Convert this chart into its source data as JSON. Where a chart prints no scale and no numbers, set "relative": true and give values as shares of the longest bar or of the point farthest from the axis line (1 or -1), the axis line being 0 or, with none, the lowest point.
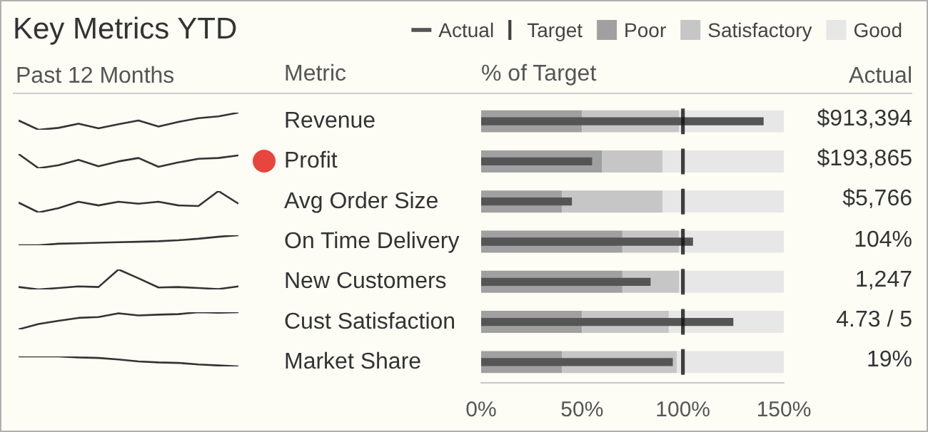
{
  "chart_data": [
    {
      "type": "bar",
      "xlabel": "% of Target",
      "ylabel": "Metric",
      "orientation": "horizontal",
      "legend": "top right",
      "categories": [
        "Revenue",
        "Profit",
        "Avg Order Size",
        "On Time Delivery",
        "New Customers",
        "Cust Satisfaction",
        "Market Share"
      ],
      "series": [
        {
          "name": "Actual",
          "color": "#555555",
          "values": [
            140,
            55,
            45,
            105,
            84,
            125,
            95
          ]
        },
        {
          "name": "Target",
          "type": "scatter",
          "color": "#111111",
          "values": [
            100,
            100,
            100,
            100,
            100,
            100,
            100
          ]
        },
        {
          "name": "Poor",
          "color": "#a0a0a0",
          "base": [
            0,
            0,
            0,
            0,
            0,
            0,
            0
          ],
          "values": [
            50,
            60,
            40,
            70,
            70,
            50,
            40
          ]
        },
        {
          "name": "Satisfactory",
          "color": "#c6c6c6",
          "base": [
            50,
            60,
            40,
            70,
            70,
            50,
            40
          ],
          "values": [
            48,
            30,
            50,
            28,
            28,
            43,
            57
          ]
        },
        {
          "name": "Good",
          "color": "#e7e7e7",
          "base": [
            98,
            90,
            90,
            98,
            98,
            93,
            97
          ],
          "values": [
            52,
            60,
            60,
            52,
            52,
            57,
            53
          ]
        }
      ],
      "xlim": [
        0,
        150
      ],
      "xticks": [
        {
          "value": 0,
          "label": "0%"
        },
        {
          "value": 50,
          "label": "50%"
        },
        {
          "value": 100,
          "label": "100%"
        },
        {
          "value": 150,
          "label": "150%"
        }
      ]
    },
    {
      "type": "line",
      "title": "Key Metrics YTD",
      "annotations": [
        "Past 12 Months"
      ],
      "relative": true,
      "marker": "none",
      "color": "#333333",
      "categories": [
        null,
        null,
        null,
        null,
        null,
        null,
        null,
        null,
        null,
        null,
        null,
        null
      ],
      "values": [
        0.54,
        0,
        0.11,
        0.35,
        0.08,
        0.32,
        0.54,
        0.19,
        0.46,
        0.68,
        0.78,
        1
      ]
    },
    {
      "type": "line",
      "relative": true,
      "marker": "none",
      "color": "#333333",
      "categories": [
        null,
        null,
        null,
        null,
        null,
        null,
        null,
        null,
        null,
        null,
        null,
        null
      ],
      "values": [
        1,
        0,
        0.21,
        0.59,
        0.14,
        0.48,
        0.72,
        0.1,
        0.41,
        0.66,
        0.72,
        0.9
      ]
    },
    {
      "type": "line",
      "relative": true,
      "marker": "none",
      "color": "#333333",
      "categories": [
        null,
        null,
        null,
        null,
        null,
        null,
        null,
        null,
        null,
        null,
        null,
        null
      ],
      "values": [
        0.46,
        0,
        0.2,
        0.5,
        0.33,
        0.5,
        0.41,
        0.5,
        0.33,
        0.3,
        1,
        0.41
      ]
    },
    {
      "type": "line",
      "relative": true,
      "marker": "none",
      "color": "#333333",
      "categories": [
        null,
        null,
        null,
        null,
        null,
        null,
        null,
        null,
        null,
        null,
        null,
        null
      ],
      "values": [
        0,
        0,
        0.15,
        0.2,
        0.25,
        0.3,
        0.35,
        0.4,
        0.5,
        0.65,
        0.85,
        1
      ]
    },
    {
      "type": "line",
      "relative": true,
      "marker": "none",
      "color": "#333333",
      "categories": [
        null,
        null,
        null,
        null,
        null,
        null,
        null,
        null,
        null,
        null,
        null,
        null
      ],
      "values": [
        0.12,
        0,
        0.07,
        0.15,
        0.12,
        1,
        0.56,
        0.1,
        0.12,
        0.07,
        0.02,
        0.15
      ]
    },
    {
      "type": "line",
      "relative": true,
      "marker": "none",
      "color": "#333333",
      "categories": [
        null,
        null,
        null,
        null,
        null,
        null,
        null,
        null,
        null,
        null,
        null,
        null
      ],
      "values": [
        0,
        0.31,
        0.5,
        0.67,
        0.72,
        0.94,
        0.81,
        0.86,
        0.89,
        1,
        0.97,
        1
      ]
    },
    {
      "type": "line",
      "relative": true,
      "marker": "none",
      "color": "#333333",
      "categories": [
        null,
        null,
        null,
        null,
        null,
        null,
        null,
        null,
        null,
        null,
        null,
        null
      ],
      "values": [
        1,
        1,
        1,
        0.9,
        0.85,
        0.7,
        0.5,
        0.4,
        0.35,
        0.2,
        0.1,
        0
      ]
    },
    {
      "type": "other",
      "title": "Actual",
      "annotations": [
        "$913,394",
        "$193,865",
        "$5,766",
        "104%",
        "1,247",
        "4.73 / 5",
        "19%"
      ]
    }
  ]
}
